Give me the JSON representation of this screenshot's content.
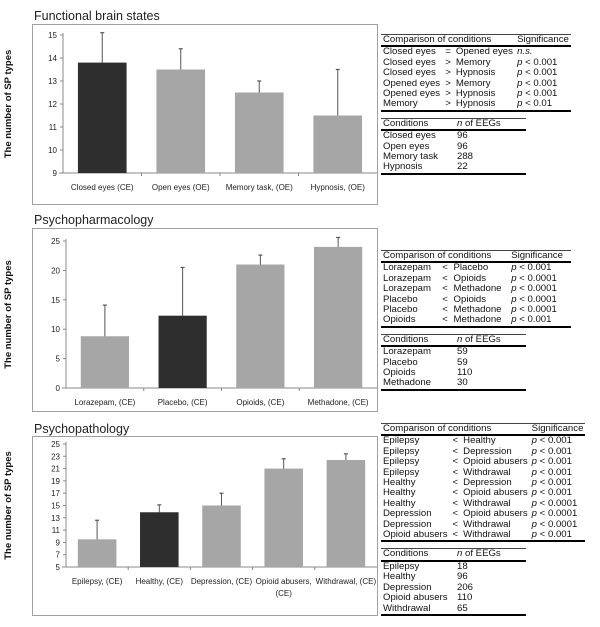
{
  "chart_data": [
    {
      "type": "bar",
      "title": "Functional brain states",
      "xlabel": "",
      "ylabel": "The number of SP types",
      "ylim": [
        9,
        15
      ],
      "yticks": [
        9,
        10,
        11,
        12,
        13,
        14,
        15
      ],
      "categories": [
        "Closed eyes (CE)",
        "Open eyes (OE)",
        "Memory task, (OE)",
        "Hypnosis, (OE)"
      ],
      "values": [
        13.8,
        13.5,
        12.5,
        11.5
      ],
      "errors_upper": [
        15.1,
        14.4,
        13.0,
        13.5
      ],
      "bar_colors": [
        "#2e2e2e",
        "#a6a6a6",
        "#a6a6a6",
        "#a6a6a6"
      ],
      "grid": false
    },
    {
      "type": "bar",
      "title": "Psychopharmacology",
      "xlabel": "",
      "ylabel": "The number of SP types",
      "ylim": [
        0,
        25
      ],
      "yticks": [
        0,
        5,
        10,
        15,
        20,
        25
      ],
      "categories": [
        "Lorazepam, (CE)",
        "Placebo, (CE)",
        "Opioids, (CE)",
        "Methadone, (CE)"
      ],
      "values": [
        8.8,
        12.3,
        21.0,
        24.0
      ],
      "errors_upper": [
        14.1,
        20.5,
        22.6,
        25.6
      ],
      "bar_colors": [
        "#a6a6a6",
        "#2e2e2e",
        "#a6a6a6",
        "#a6a6a6"
      ],
      "grid": false
    },
    {
      "type": "bar",
      "title": "Psychopathology",
      "xlabel": "",
      "ylabel": "The number of SP types",
      "ylim": [
        5,
        25
      ],
      "yticks": [
        5,
        7,
        9,
        11,
        13,
        15,
        17,
        19,
        21,
        23,
        25
      ],
      "categories": [
        "Epilepsy, (CE)",
        "Healthy, (CE)",
        "Depression, (CE)",
        "Opioid abusers, (CE)",
        "Withdrawal, (CE)"
      ],
      "category_lines": [
        [
          "Epilepsy, (CE)"
        ],
        [
          "Healthy, (CE)"
        ],
        [
          "Depression, (CE)"
        ],
        [
          "Opioid abusers,",
          "(CE)"
        ],
        [
          "Withdrawal, (CE)"
        ]
      ],
      "values": [
        9.5,
        13.9,
        15.0,
        21.0,
        22.4
      ],
      "errors_upper": [
        12.6,
        15.1,
        17.0,
        22.6,
        23.4
      ],
      "bar_colors": [
        "#a6a6a6",
        "#2e2e2e",
        "#a6a6a6",
        "#a6a6a6",
        "#a6a6a6"
      ],
      "grid": false
    }
  ],
  "tables": [
    {
      "comparison": {
        "header": [
          "Comparison of conditions",
          "Significance"
        ],
        "rows": [
          [
            "Closed eyes",
            "=",
            "Opened eyes",
            "n.s.",
            ""
          ],
          [
            "Closed eyes",
            ">",
            "Memory",
            "p",
            " < 0.001"
          ],
          [
            "Closed eyes",
            ">",
            "Hypnosis",
            "p",
            " < 0.001"
          ],
          [
            "Opened eyes",
            ">",
            "Memory",
            "p",
            " < 0.001"
          ],
          [
            "Opened eyes",
            ">",
            "Hypnosis",
            "p",
            " < 0.001"
          ],
          [
            "Memory",
            ">",
            "Hypnosis",
            "p",
            " < 0.01"
          ]
        ]
      },
      "counts": {
        "header": [
          "Conditions",
          "n",
          " of EEGs"
        ],
        "rows": [
          [
            "Closed eyes",
            "96"
          ],
          [
            "Open eyes",
            "96"
          ],
          [
            "Memory task",
            "288"
          ],
          [
            "Hypnosis",
            "22"
          ]
        ]
      }
    },
    {
      "comparison": {
        "header": [
          "Comparison of conditions",
          "Significance"
        ],
        "rows": [
          [
            "Lorazepam",
            "<",
            "Placebo",
            "p",
            " < 0.001"
          ],
          [
            "Lorazepam",
            "<",
            "Opioids",
            "p",
            " < 0.0001"
          ],
          [
            "Lorazepam",
            "<",
            "Methadone",
            "p",
            " < 0.0001"
          ],
          [
            "Placebo",
            "<",
            "Opioids",
            "p",
            " < 0.0001"
          ],
          [
            "Placebo",
            "<",
            "Methadone",
            "p",
            " < 0.0001"
          ],
          [
            "Opioids",
            "<",
            "Methadone",
            "p",
            " < 0.001"
          ]
        ]
      },
      "counts": {
        "header": [
          "Conditions",
          "n",
          " of EEGs"
        ],
        "rows": [
          [
            "Lorazepam",
            "59"
          ],
          [
            "Placebo",
            "59"
          ],
          [
            "Opioids",
            "110"
          ],
          [
            "Methadone",
            "30"
          ]
        ]
      }
    },
    {
      "comparison": {
        "header": [
          "Comparison of conditions",
          "Significance"
        ],
        "rows": [
          [
            "Epilepsy",
            "<",
            "Healthy",
            "p",
            " < 0.001"
          ],
          [
            "Epilepsy",
            "<",
            "Depression",
            "p",
            " < 0.001"
          ],
          [
            "Epilepsy",
            "<",
            "Opioid abusers",
            "p",
            " < 0.001"
          ],
          [
            "Epilepsy",
            "<",
            "Withdrawal",
            "p",
            " < 0.001"
          ],
          [
            "Healthy",
            "<",
            "Depression",
            "p",
            " < 0.001"
          ],
          [
            "Healthy",
            "<",
            "Opioid abusers",
            "p",
            " < 0.001"
          ],
          [
            "Healthy",
            "<",
            "Withdrawal",
            "p",
            " < 0.0001"
          ],
          [
            "Depression",
            "<",
            "Opioid abusers",
            "p",
            " < 0.0001"
          ],
          [
            "Depression",
            "<",
            "Withdrawal",
            "p",
            " < 0.0001"
          ],
          [
            "Opioid abusers",
            "<",
            "Withdrawal",
            "p",
            " < 0.001"
          ]
        ]
      },
      "counts": {
        "header": [
          "Conditions",
          "n",
          " of EEGs"
        ],
        "rows": [
          [
            "Epilepsy",
            "18"
          ],
          [
            "Healthy",
            "96"
          ],
          [
            "Depression",
            "206"
          ],
          [
            "Opioid abusers",
            "110"
          ],
          [
            "Withdrawal",
            "65"
          ]
        ]
      }
    }
  ]
}
